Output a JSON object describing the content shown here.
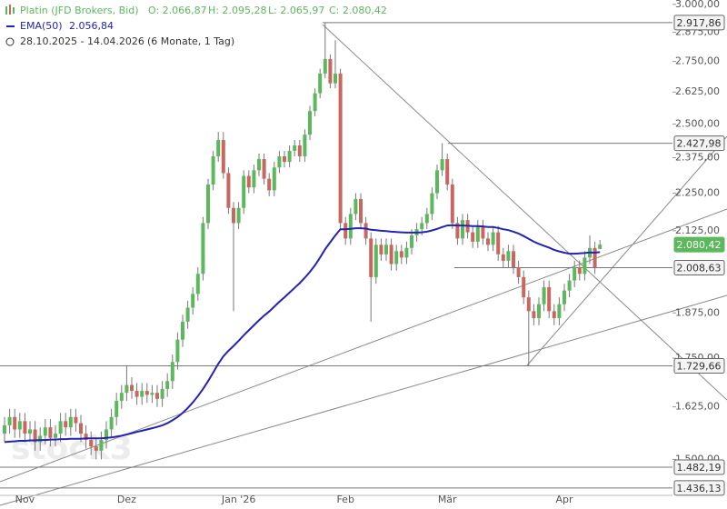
{
  "chart_data": {
    "type": "candlestick",
    "title": "Platin (JFD Brokers, Bid)",
    "ohlc_labels": [
      "O: 2.066,87",
      "H: 2.095,28",
      "L: 2.065,97",
      "C: 2.080,42"
    ],
    "date_range": "28.10.2025 - 14.04.2026",
    "period": "(6 Monate, 1 Tag)",
    "watermark": "stock3",
    "log_y": true,
    "up_color": "#5cb85c",
    "down_color": "#c8675f",
    "categories": [
      null,
      null,
      null,
      null,
      "Nov",
      null,
      null,
      null,
      null,
      null,
      null,
      null,
      null,
      null,
      null,
      null,
      null,
      null,
      null,
      null,
      null,
      null,
      null,
      null,
      "Dez",
      null,
      null,
      null,
      null,
      null,
      null,
      null,
      null,
      null,
      null,
      null,
      null,
      null,
      null,
      null,
      null,
      null,
      null,
      null,
      null,
      null,
      "Jan '26",
      null,
      null,
      null,
      null,
      null,
      null,
      null,
      null,
      null,
      null,
      null,
      null,
      null,
      null,
      null,
      null,
      null,
      null,
      null,
      null,
      "Feb",
      null,
      null,
      null,
      null,
      null,
      null,
      null,
      null,
      null,
      null,
      null,
      null,
      null,
      null,
      null,
      null,
      null,
      null,
      null,
      "Mär",
      null,
      null,
      null,
      null,
      null,
      null,
      null,
      null,
      null,
      null,
      null,
      null,
      null,
      null,
      null,
      null,
      null,
      null,
      null,
      null,
      null,
      null,
      "Apr",
      null,
      null,
      null,
      null,
      null,
      null,
      null
    ],
    "open": [
      1560,
      1580,
      1600,
      1570,
      1590,
      1560,
      1570,
      1540,
      1555,
      1575,
      1550,
      1560,
      1590,
      1575,
      1600,
      1585,
      1560,
      1545,
      1530,
      1520,
      1545,
      1570,
      1600,
      1640,
      1660,
      1680,
      1665,
      1650,
      1665,
      1655,
      1660,
      1645,
      1670,
      1690,
      1740,
      1800,
      1850,
      1890,
      1930,
      1990,
      2150,
      2280,
      2380,
      2440,
      2320,
      2200,
      2150,
      2200,
      2310,
      2270,
      2330,
      2370,
      2300,
      2260,
      2340,
      2380,
      2360,
      2400,
      2420,
      2380,
      2460,
      2550,
      2620,
      2700,
      2760,
      2660,
      2700,
      2150,
      2100,
      2180,
      2230,
      2150,
      2100,
      1980,
      2080,
      2050,
      2080,
      2020,
      2060,
      2040,
      2070,
      2110,
      2130,
      2150,
      2180,
      2250,
      2330,
      2370,
      2280,
      2150,
      2100,
      2160,
      2120,
      2090,
      2140,
      2100,
      2080,
      2120,
      2050,
      2030,
      2060,
      2010,
      1980,
      1920,
      1880,
      1860,
      1900,
      1950,
      1880,
      1860,
      1900,
      1940,
      1970,
      2010,
      1990,
      2040,
      2070,
      2066.87
    ],
    "high": [
      1600,
      1620,
      1620,
      1610,
      1610,
      1590,
      1590,
      1575,
      1595,
      1595,
      1580,
      1610,
      1610,
      1620,
      1620,
      1605,
      1580,
      1565,
      1550,
      1565,
      1590,
      1620,
      1660,
      1680,
      1730,
      1700,
      1685,
      1685,
      1685,
      1680,
      1680,
      1690,
      1710,
      1760,
      1820,
      1870,
      1910,
      1950,
      2010,
      2170,
      2300,
      2400,
      2470,
      2470,
      2340,
      2220,
      2220,
      2330,
      2330,
      2350,
      2390,
      2390,
      2320,
      2360,
      2400,
      2400,
      2420,
      2440,
      2440,
      2480,
      2570,
      2640,
      2720,
      2917.86,
      2780,
      2840,
      2720,
      2170,
      2200,
      2250,
      2250,
      2170,
      2120,
      2100,
      2100,
      2100,
      2100,
      2080,
      2080,
      2090,
      2130,
      2150,
      2170,
      2200,
      2270,
      2350,
      2427.98,
      2390,
      2300,
      2170,
      2180,
      2180,
      2140,
      2160,
      2160,
      2120,
      2140,
      2140,
      2070,
      2080,
      2080,
      2030,
      2000,
      1940,
      1900,
      1920,
      1970,
      1970,
      1900,
      1920,
      1960,
      1990,
      2030,
      2030,
      2060,
      2110,
      2090,
      2095.28
    ],
    "low": [
      1540,
      1560,
      1550,
      1550,
      1540,
      1540,
      1520,
      1520,
      1535,
      1530,
      1530,
      1540,
      1555,
      1555,
      1565,
      1540,
      1525,
      1510,
      1500,
      1500,
      1525,
      1550,
      1580,
      1620,
      1640,
      1645,
      1630,
      1630,
      1635,
      1635,
      1625,
      1625,
      1650,
      1670,
      1720,
      1780,
      1830,
      1870,
      1910,
      1970,
      2130,
      2260,
      2360,
      2300,
      2180,
      1880,
      2130,
      2180,
      2250,
      2250,
      2310,
      2280,
      2240,
      2240,
      2320,
      2340,
      2340,
      2380,
      2360,
      2360,
      2440,
      2530,
      2600,
      2680,
      2640,
      2640,
      2130,
      2080,
      2080,
      2160,
      2130,
      2080,
      1850,
      1960,
      2030,
      2030,
      2000,
      2000,
      2020,
      2020,
      2050,
      2090,
      2110,
      2130,
      2160,
      2230,
      2310,
      2260,
      2130,
      2080,
      2080,
      2100,
      2070,
      2070,
      2080,
      2060,
      2060,
      2030,
      2010,
      2010,
      1990,
      1960,
      1900,
      1729.66,
      1840,
      1840,
      1880,
      1860,
      1840,
      1840,
      1880,
      1920,
      1950,
      1970,
      1970,
      2020,
      1990,
      2065.97
    ],
    "close": [
      1580,
      1600,
      1570,
      1590,
      1560,
      1570,
      1540,
      1555,
      1575,
      1550,
      1560,
      1590,
      1575,
      1600,
      1585,
      1560,
      1545,
      1530,
      1520,
      1545,
      1570,
      1600,
      1640,
      1660,
      1680,
      1665,
      1650,
      1665,
      1655,
      1660,
      1645,
      1670,
      1690,
      1740,
      1800,
      1850,
      1890,
      1930,
      1990,
      2150,
      2280,
      2380,
      2440,
      2320,
      2200,
      2150,
      2200,
      2310,
      2270,
      2330,
      2370,
      2300,
      2260,
      2340,
      2380,
      2360,
      2400,
      2420,
      2380,
      2460,
      2550,
      2620,
      2700,
      2760,
      2660,
      2700,
      2150,
      2100,
      2180,
      2230,
      2150,
      2100,
      1980,
      2080,
      2050,
      2080,
      2020,
      2060,
      2040,
      2070,
      2110,
      2130,
      2150,
      2180,
      2250,
      2330,
      2370,
      2280,
      2150,
      2100,
      2160,
      2120,
      2090,
      2140,
      2100,
      2080,
      2120,
      2050,
      2030,
      2060,
      2010,
      1980,
      1920,
      1880,
      1860,
      1900,
      1950,
      1880,
      1860,
      1900,
      1940,
      1970,
      2010,
      1990,
      2040,
      2070,
      2010,
      2080.42
    ],
    "series": [
      {
        "name": "EMA(50)",
        "value_label": "2.056,84",
        "color": "#2323b4",
        "values": [
          1540,
          1541,
          1542,
          1543,
          1543,
          1544,
          1544,
          1545,
          1545,
          1546,
          1546,
          1547,
          1547,
          1548,
          1548,
          1548,
          1549,
          1549,
          1549,
          1549,
          1550,
          1551,
          1553,
          1555,
          1558,
          1561,
          1564,
          1567,
          1570,
          1573,
          1576,
          1580,
          1585,
          1592,
          1600,
          1610,
          1622,
          1636,
          1652,
          1670,
          1690,
          1712,
          1735,
          1755,
          1770,
          1783,
          1797,
          1812,
          1826,
          1840,
          1854,
          1867,
          1879,
          1893,
          1907,
          1920,
          1934,
          1948,
          1962,
          1978,
          1996,
          2016,
          2040,
          2066,
          2088,
          2110,
          2130,
          2130,
          2131,
          2133,
          2133,
          2132,
          2128,
          2127,
          2125,
          2124,
          2122,
          2121,
          2120,
          2119,
          2119,
          2119,
          2120,
          2122,
          2126,
          2131,
          2137,
          2142,
          2143,
          2142,
          2142,
          2141,
          2140,
          2140,
          2139,
          2137,
          2137,
          2134,
          2130,
          2127,
          2122,
          2116,
          2108,
          2099,
          2090,
          2083,
          2077,
          2071,
          2064,
          2059,
          2055,
          2052,
          2052,
          2053,
          2054,
          2056,
          2055,
          2056.84
        ]
      }
    ],
    "ylim": [
      1420,
      3020
    ],
    "yticks": [
      {
        "value": 3000,
        "label": "3.000,00"
      },
      {
        "value": 2875,
        "label": "2.875,00"
      },
      {
        "value": 2750,
        "label": "2.750,00"
      },
      {
        "value": 2625,
        "label": "2.625,00"
      },
      {
        "value": 2500,
        "label": "2.500,00"
      },
      {
        "value": 2375,
        "label": "2.375,00"
      },
      {
        "value": 2250,
        "label": "2.250,00"
      },
      {
        "value": 2125,
        "label": "2.125,00"
      },
      {
        "value": 1875,
        "label": "1.875,00"
      },
      {
        "value": 1750,
        "label": "1.750,00"
      },
      {
        "value": 1625,
        "label": "1.625,00"
      },
      {
        "value": 1500,
        "label": "1.500,00"
      }
    ],
    "levels": [
      {
        "value": 2917.86,
        "label": "2.917,86"
      },
      {
        "value": 2427.98,
        "label": "2.427,98"
      },
      {
        "value": 2008.63,
        "label": "2.008,63"
      },
      {
        "value": 1729.66,
        "label": "1.729,66"
      },
      {
        "value": 1482.19,
        "label": "1.482,19"
      },
      {
        "value": 1436.13,
        "label": "1.436,13"
      }
    ],
    "last_price": {
      "value": 2080.42,
      "label": "2.080,42",
      "color": "#5cb85c"
    }
  }
}
